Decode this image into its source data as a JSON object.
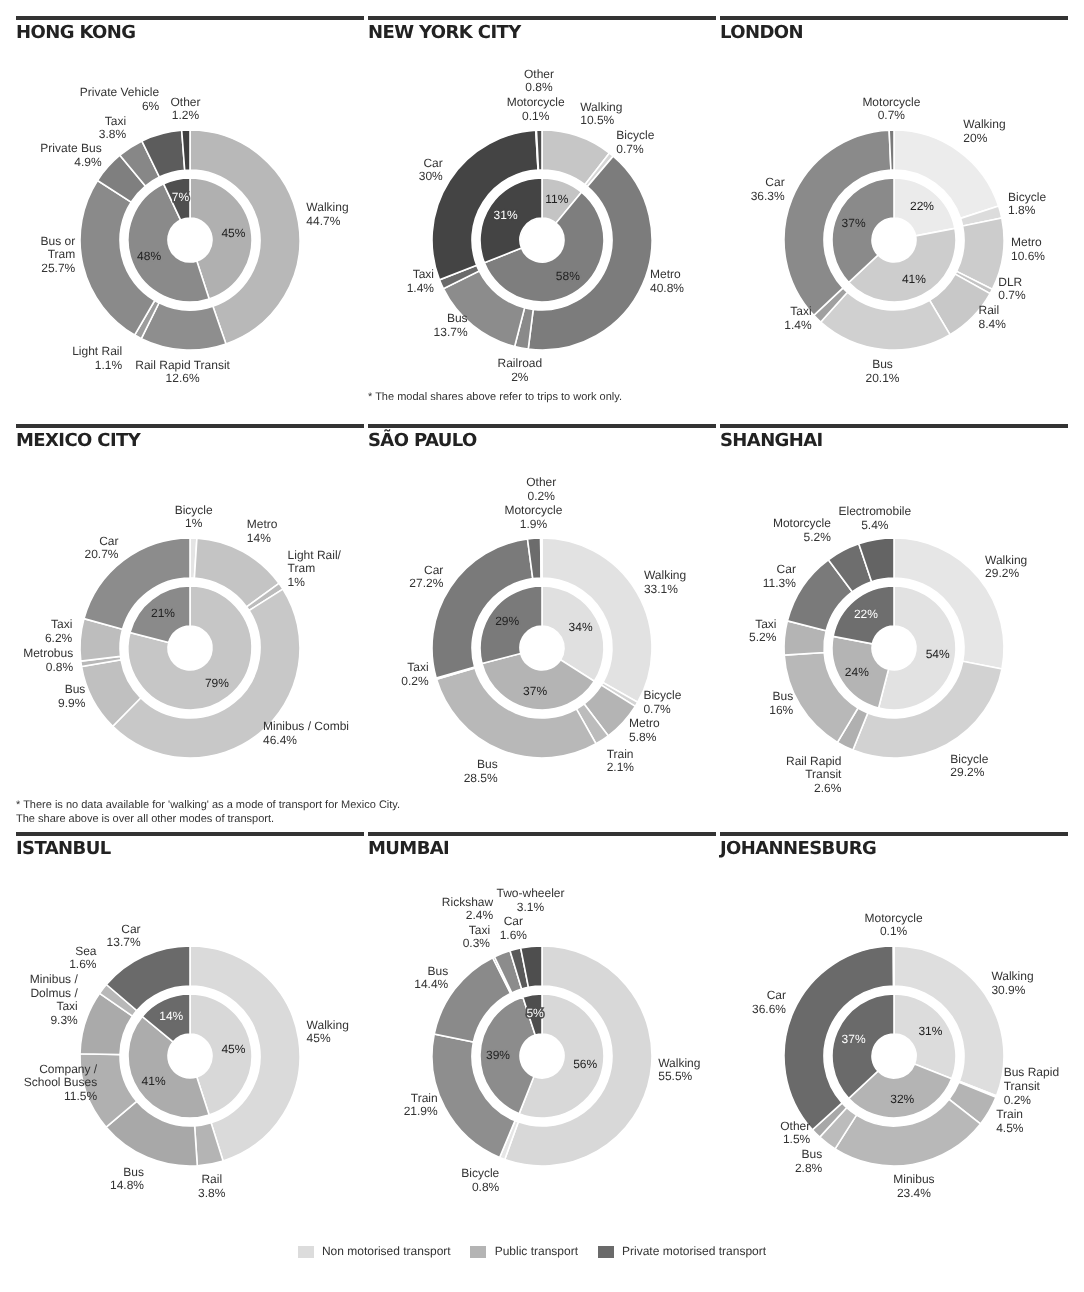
{
  "chart_data": [
    {
      "type": "donut",
      "title": "HONG KONG",
      "categories": [
        "Walking",
        "Rail Rapid Transit",
        "Light Rail",
        "Bus or\nTram",
        "Private Bus",
        "Taxi",
        "Private Vehicle",
        "Other"
      ],
      "values": [
        44.7,
        12.6,
        1.1,
        25.7,
        4.9,
        3.8,
        6,
        1.2
      ],
      "value_labels": [
        "44.7%",
        "12.6%",
        "1.1%",
        "25.7%",
        "4.9%",
        "3.8%",
        "6%",
        "1.2%"
      ],
      "colors": [
        "#b8b8b8",
        "#8e8e8e",
        "#9c9c9c",
        "#8a8a8a",
        "#7f7f7f",
        "#878787",
        "#5c5c5c",
        "#3f3f3f"
      ]
    },
    {
      "type": "donut",
      "categories": [
        null,
        null,
        null
      ],
      "values": [
        45,
        48,
        7
      ],
      "value_labels": [
        "45%",
        "48%",
        "7%"
      ],
      "colors": [
        "#b0b0b0",
        "#8a8a8a",
        "#4f4f4f"
      ]
    },
    {
      "type": "donut",
      "title": "NEW YORK CITY",
      "annotations": [
        "* The modal shares above refer to trips to work only."
      ],
      "categories": [
        "Walking",
        "Bicycle",
        "Metro",
        "Railroad",
        "Bus",
        "Taxi",
        "Car",
        "Motorcycle",
        "Other"
      ],
      "values": [
        10.5,
        0.7,
        40.8,
        2,
        13.7,
        1.4,
        30,
        0.1,
        0.8
      ],
      "value_labels": [
        "10.5%",
        "0.7%",
        "40.8%",
        "2%",
        "13.7%",
        "1.4%",
        "30%",
        "0.1%",
        "0.8%"
      ],
      "colors": [
        "#c6c6c6",
        "#d6d6d6",
        "#7c7c7c",
        "#8a8a8a",
        "#8c8c8c",
        "#6a6a6a",
        "#444444",
        "#555555",
        "#4c4c4c"
      ]
    },
    {
      "type": "donut",
      "categories": [
        null,
        null,
        null
      ],
      "values": [
        11,
        58,
        31
      ],
      "value_labels": [
        "11%",
        "58%",
        "31%"
      ],
      "colors": [
        "#c4c4c4",
        "#7e7e7e",
        "#444444"
      ]
    },
    {
      "type": "donut",
      "title": "LONDON",
      "categories": [
        "Walking",
        "Bicycle",
        "Metro",
        "DLR",
        "Rail",
        "Bus",
        "Taxi",
        "Car",
        "Motorcycle"
      ],
      "values": [
        20,
        1.8,
        10.6,
        0.7,
        8.4,
        20.1,
        1.4,
        36.3,
        0.7
      ],
      "value_labels": [
        "20%",
        "1.8%",
        "10.6%",
        "0.7%",
        "8.4%",
        "20.1%",
        "1.4%",
        "36.3%",
        "0.7%"
      ],
      "colors": [
        "#ececec",
        "#dcdcdc",
        "#cccccc",
        "#c4c4c4",
        "#c8c8c8",
        "#d0d0d0",
        "#a0a0a0",
        "#8a8a8a",
        "#7a7a7a"
      ]
    },
    {
      "type": "donut",
      "categories": [
        null,
        null,
        null
      ],
      "values": [
        22,
        41,
        37
      ],
      "value_labels": [
        "22%",
        "41%",
        "37%"
      ],
      "colors": [
        "#ebebeb",
        "#cdcdcd",
        "#8a8a8a"
      ]
    },
    {
      "type": "donut",
      "title": "MEXICO CITY",
      "annotations": [
        "* There is no data available for 'walking' as a mode of transport for Mexico City.",
        "The share above is over all other modes of transport."
      ],
      "categories": [
        "Bicycle",
        "Metro",
        "Light Rail/\nTram",
        "Minibus / Combi",
        "Bus",
        "Metrobus",
        "Taxi",
        "Car"
      ],
      "values": [
        1,
        14,
        1,
        46.4,
        9.9,
        0.8,
        6.2,
        20.7
      ],
      "value_labels": [
        "1%",
        "14%",
        "1%",
        "46.4%",
        "9.9%",
        "0.8%",
        "6.2%",
        "20.7%"
      ],
      "colors": [
        "#e4e4e4",
        "#c4c4c4",
        "#bcbcbc",
        "#c8c8c8",
        "#c0c0c0",
        "#b8b8b8",
        "#bdbdbd",
        "#8c8c8c"
      ]
    },
    {
      "type": "donut",
      "categories": [
        null,
        null
      ],
      "values": [
        79,
        21
      ],
      "value_labels": [
        "79%",
        "21%"
      ],
      "colors": [
        "#c6c6c6",
        "#8a8a8a"
      ]
    },
    {
      "type": "donut",
      "title": "SÃO PAULO",
      "categories": [
        "Walking",
        "Bicycle",
        "Metro",
        "Train",
        "Bus",
        "Taxi",
        "Car",
        "Motorcycle",
        "Other"
      ],
      "values": [
        33.1,
        0.7,
        5.8,
        2.1,
        28.5,
        0.2,
        27.2,
        1.9,
        0.2
      ],
      "value_labels": [
        "33.1%",
        "0.7%",
        "5.8%",
        "2.1%",
        "28.5%",
        "0.2%",
        "27.2%",
        "1.9%",
        "0.2%"
      ],
      "colors": [
        "#e2e2e2",
        "#d4d4d4",
        "#b4b4b4",
        "#bcbcbc",
        "#b8b8b8",
        "#8c8c8c",
        "#7a7a7a",
        "#6c6c6c",
        "#5a5a5a"
      ]
    },
    {
      "type": "donut",
      "categories": [
        null,
        null,
        null
      ],
      "values": [
        34,
        37,
        29
      ],
      "value_labels": [
        "34%",
        "37%",
        "29%"
      ],
      "colors": [
        "#e0e0e0",
        "#b4b4b4",
        "#7a7a7a"
      ]
    },
    {
      "type": "donut",
      "title": "SHANGHAI",
      "categories": [
        "Walking",
        "Bicycle",
        "Rail Rapid\nTransit",
        "Bus",
        "Taxi",
        "Car",
        "Motorcycle",
        "Electromobile"
      ],
      "values": [
        29.2,
        29.2,
        2.6,
        16,
        5.2,
        11.3,
        5.2,
        5.4
      ],
      "value_labels": [
        "29.2%",
        "29.2%",
        "2.6%",
        "16%",
        "5.2%",
        "11.3%",
        "5.2%",
        "5.4%"
      ],
      "colors": [
        "#e6e6e6",
        "#d2d2d2",
        "#b0b0b0",
        "#b8b8b8",
        "#b4b4b4",
        "#7a7a7a",
        "#6e6e6e",
        "#646464"
      ]
    },
    {
      "type": "donut",
      "categories": [
        null,
        null,
        null
      ],
      "values": [
        54,
        24,
        22
      ],
      "value_labels": [
        "54%",
        "24%",
        "22%"
      ],
      "colors": [
        "#e2e2e2",
        "#b4b4b4",
        "#6e6e6e"
      ]
    },
    {
      "type": "donut",
      "title": "ISTANBUL",
      "categories": [
        "Walking",
        "Rail",
        "Bus",
        "Company /\nSchool Buses",
        "Minibus /\nDolmus /\nTaxi",
        "Sea",
        "Car"
      ],
      "values": [
        45,
        3.8,
        14.8,
        11.5,
        9.3,
        1.6,
        13.7
      ],
      "value_labels": [
        "45%",
        "3.8%",
        "14.8%",
        "11.5%",
        "9.3%",
        "1.6%",
        "13.7%"
      ],
      "colors": [
        "#dadada",
        "#b4b4b4",
        "#a8a8a8",
        "#b0b0b0",
        "#aaaaaa",
        "#b8b8b8",
        "#6a6a6a"
      ]
    },
    {
      "type": "donut",
      "categories": [
        null,
        null,
        null
      ],
      "values": [
        45,
        41,
        14
      ],
      "value_labels": [
        "45%",
        "41%",
        "14%"
      ],
      "colors": [
        "#d8d8d8",
        "#acacac",
        "#6a6a6a"
      ]
    },
    {
      "type": "donut",
      "title": "MUMBAI",
      "categories": [
        "Walking",
        "Bicycle",
        "Train",
        "Bus",
        "Taxi",
        "Rickshaw",
        "Car",
        "Two-wheeler"
      ],
      "values": [
        55.5,
        0.8,
        21.9,
        14.4,
        0.3,
        2.4,
        1.6,
        3.1
      ],
      "value_labels": [
        "55.5%",
        "0.8%",
        "21.9%",
        "14.4%",
        "0.3%",
        "2.4%",
        "1.6%",
        "3.1%"
      ],
      "colors": [
        "#d8d8d8",
        "#e6e6e6",
        "#8e8e8e",
        "#8a8a8a",
        "#9a9a9a",
        "#8c8c8c",
        "#5a5a5a",
        "#4e4e4e"
      ]
    },
    {
      "type": "donut",
      "categories": [
        null,
        null,
        null
      ],
      "values": [
        56,
        39,
        5
      ],
      "value_labels": [
        "56%",
        "39%",
        "5%"
      ],
      "colors": [
        "#d8d8d8",
        "#8c8c8c",
        "#4e4e4e"
      ]
    },
    {
      "type": "donut",
      "title": "JOHANNESBURG",
      "categories": [
        "Walking",
        "Bus Rapid\nTransit",
        "Train",
        "Minibus",
        "Bus",
        "Other",
        "Car",
        "Motorcycle"
      ],
      "values": [
        30.9,
        0.2,
        4.5,
        23.4,
        2.8,
        1.5,
        36.6,
        0.1
      ],
      "value_labels": [
        "30.9%",
        "0.2%",
        "4.5%",
        "23.4%",
        "2.8%",
        "1.5%",
        "36.6%",
        "0.1%"
      ],
      "colors": [
        "#dedede",
        "#b0b0b0",
        "#b4b4b4",
        "#b8b8b8",
        "#bcbcbc",
        "#a8a8a8",
        "#6a6a6a",
        "#5c5c5c"
      ]
    },
    {
      "type": "donut",
      "legend": "bottom",
      "categories": [
        "Non motorised transport",
        "Public transport",
        "Private motorised transport"
      ],
      "values": [
        31,
        32,
        37
      ],
      "value_labels": [
        "31%",
        "32%",
        "37%"
      ],
      "colors": [
        "#dcdcdc",
        "#b4b4b4",
        "#6a6a6a"
      ]
    }
  ]
}
